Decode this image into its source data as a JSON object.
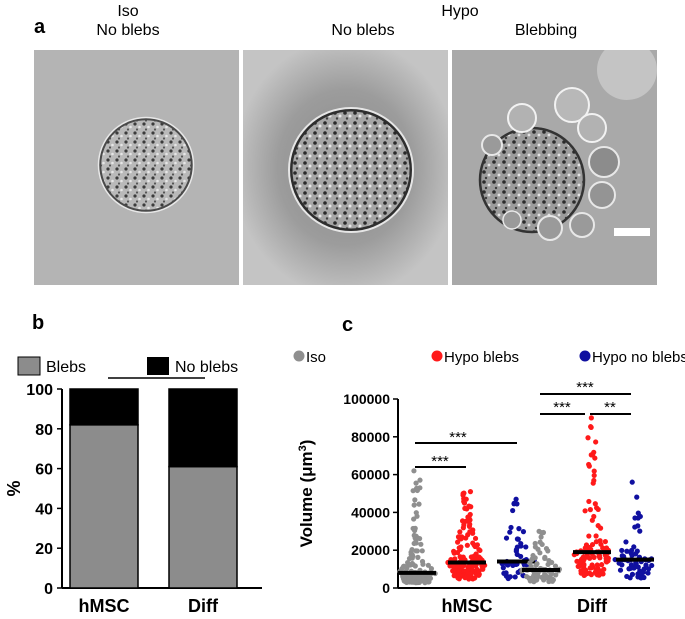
{
  "panel_a": {
    "letter": "a",
    "group_iso": "Iso",
    "group_hypo": "Hypo",
    "col1_label": "No blebs",
    "col2_label": "No blebs",
    "col3_label": "Blebbing"
  },
  "panel_b": {
    "letter": "b",
    "legend": [
      "Blebs",
      "No blebs"
    ],
    "significance": "***"
  },
  "panel_c": {
    "letter": "c",
    "legend": [
      "Iso",
      "Hypo blebs",
      "Hypo no blebs"
    ],
    "significance_hmsc": [
      "***",
      "***"
    ],
    "significance_diff": [
      "***",
      "***",
      "**"
    ]
  },
  "colors": {
    "blebs_bar": "#8c8c8c",
    "noblebs_bar": "#000000",
    "iso_dots": "#8f8f8f",
    "hypo_blebs_dots": "#ff1a1a",
    "hypo_noblebs_dots": "#1010a0"
  },
  "chart_data": [
    {
      "type": "bar",
      "categories": [
        "hMSC",
        "Diff"
      ],
      "series": [
        {
          "name": "Blebs",
          "values": [
            82,
            61
          ]
        },
        {
          "name": "No blebs",
          "values": [
            18,
            39
          ]
        }
      ],
      "ylabel": "%",
      "ylim": [
        0,
        100
      ],
      "yticks": [
        0,
        20,
        40,
        60,
        80,
        100
      ],
      "stacked": true,
      "legend_position": "top"
    },
    {
      "type": "scatter",
      "categories": [
        "hMSC",
        "Diff"
      ],
      "groups": [
        "Iso",
        "Hypo blebs",
        "Hypo no blebs"
      ],
      "medians": {
        "hMSC": [
          8000,
          13500,
          14000
        ],
        "Diff": [
          9500,
          19000,
          15000
        ]
      },
      "max_values": {
        "hMSC": [
          62000,
          51000,
          47000
        ],
        "Diff": [
          30000,
          90000,
          56000
        ]
      },
      "ylabel": "Volume (μm³)",
      "ylim": [
        0,
        100000
      ],
      "yticks": [
        "0",
        "20000",
        "40000",
        "60000",
        "80000",
        "100000"
      ],
      "legend_position": "top"
    }
  ]
}
